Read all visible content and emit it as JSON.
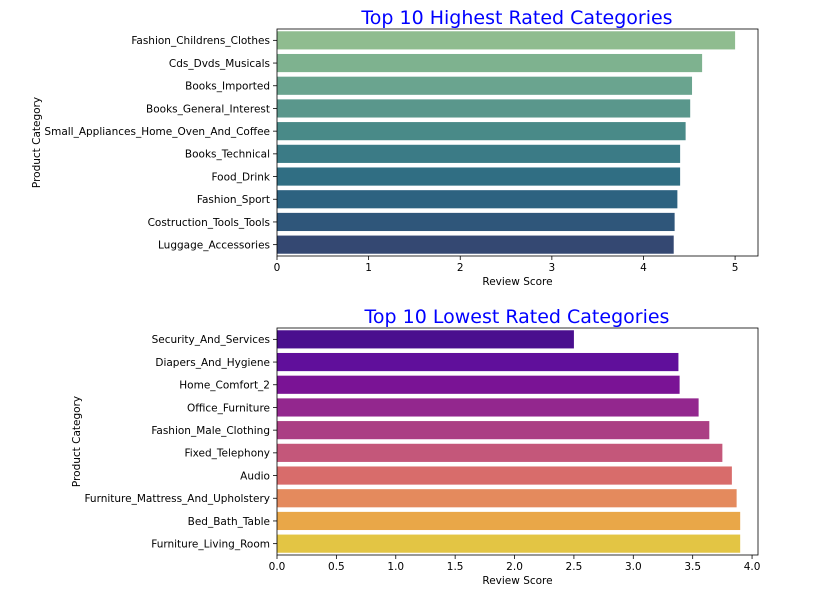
{
  "chart_data": [
    {
      "type": "bar",
      "orientation": "horizontal",
      "title": "Top 10 Highest Rated Categories",
      "title_color": "#0000ff",
      "xlabel": "Review Score",
      "ylabel": "Product Category",
      "xlim": [
        0,
        5.25
      ],
      "xticks": [
        0,
        1,
        2,
        3,
        4,
        5
      ],
      "xtick_labels": [
        "0",
        "1",
        "2",
        "3",
        "4",
        "5"
      ],
      "grid": false,
      "palette": "crest",
      "categories": [
        "Fashion_Childrens_Clothes",
        "Cds_Dvds_Musicals",
        "Books_Imported",
        "Books_General_Interest",
        "Small_Appliances_Home_Oven_And_Coffee",
        "Books_Technical",
        "Food_Drink",
        "Fashion_Sport",
        "Costruction_Tools_Tools",
        "Luggage_Accessories"
      ],
      "values": [
        5.0,
        4.64,
        4.53,
        4.51,
        4.46,
        4.4,
        4.4,
        4.37,
        4.34,
        4.33
      ],
      "colors": [
        "#8fbc8f",
        "#7eb28f",
        "#6aa48f",
        "#5a978c",
        "#498a88",
        "#3b7b86",
        "#306e83",
        "#2d6280",
        "#2f567a",
        "#344872"
      ]
    },
    {
      "type": "bar",
      "orientation": "horizontal",
      "title": "Top 10 Lowest Rated Categories",
      "title_color": "#0000ff",
      "xlabel": "Review Score",
      "ylabel": "Product Category",
      "xlim": [
        0,
        4.05
      ],
      "xticks": [
        0,
        0.5,
        1,
        1.5,
        2,
        2.5,
        3,
        3.5,
        4
      ],
      "xtick_labels": [
        "0.0",
        "0.5",
        "1.0",
        "1.5",
        "2.0",
        "2.5",
        "3.0",
        "3.5",
        "4.0"
      ],
      "grid": false,
      "palette": "plasma",
      "categories": [
        "Security_And_Services",
        "Diapers_And_Hygiene",
        "Home_Comfort_2",
        "Office_Furniture",
        "Fashion_Male_Clothing",
        "Fixed_Telephony",
        "Audio",
        "Furniture_Mattress_And_Upholstery",
        "Bed_Bath_Table",
        "Furniture_Living_Room"
      ],
      "values": [
        2.5,
        3.38,
        3.39,
        3.55,
        3.64,
        3.75,
        3.83,
        3.87,
        3.9,
        3.9
      ],
      "colors": [
        "#4a0f8e",
        "#600f9b",
        "#7a1395",
        "#93278e",
        "#ab3f84",
        "#c4577a",
        "#d86c6b",
        "#e48a5d",
        "#e9a748",
        "#e3c544"
      ]
    }
  ]
}
